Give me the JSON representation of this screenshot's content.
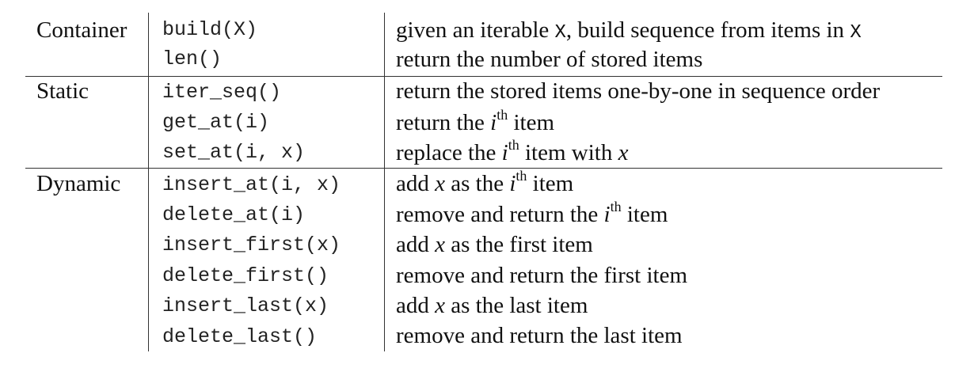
{
  "groups": [
    {
      "label": "Container",
      "rows": [
        {
          "op": "build(X)",
          "desc": {
            "pre": "given an iterable ",
            "code": "X",
            "post": ", build sequence from items in ",
            "code2": "X"
          }
        },
        {
          "op": "len()",
          "desc": {
            "text": "return the number of stored items"
          }
        }
      ]
    },
    {
      "label": "Static",
      "rows": [
        {
          "op": "iter_seq()",
          "desc": {
            "text": "return the stored items one-by-one in sequence order"
          }
        },
        {
          "op": "get_at(i)",
          "desc": {
            "pre": "return the ",
            "var": "i",
            "sup": "th",
            "post": " item"
          }
        },
        {
          "op": "set_at(i, x)",
          "desc": {
            "pre": "replace the ",
            "var": "i",
            "sup": "th",
            "post": " item with ",
            "var2": "x"
          }
        }
      ]
    },
    {
      "label": "Dynamic",
      "rows": [
        {
          "op": "insert_at(i, x)",
          "desc": {
            "pre": "add ",
            "var": "x",
            "mid": " as the ",
            "var2": "i",
            "sup": "th",
            "post": " item"
          }
        },
        {
          "op": "delete_at(i)",
          "desc": {
            "pre": "remove and return the ",
            "var": "i",
            "sup": "th",
            "post": " item"
          }
        },
        {
          "op": "insert_first(x)",
          "desc": {
            "pre": "add ",
            "var": "x",
            "post": " as the first item"
          }
        },
        {
          "op": "delete_first()",
          "desc": {
            "text": "remove and return the first item"
          }
        },
        {
          "op": "insert_last(x)",
          "desc": {
            "pre": "add ",
            "var": "x",
            "post": " as the last item"
          }
        },
        {
          "op": "delete_last()",
          "desc": {
            "text": "remove and return the last item"
          }
        }
      ]
    }
  ]
}
